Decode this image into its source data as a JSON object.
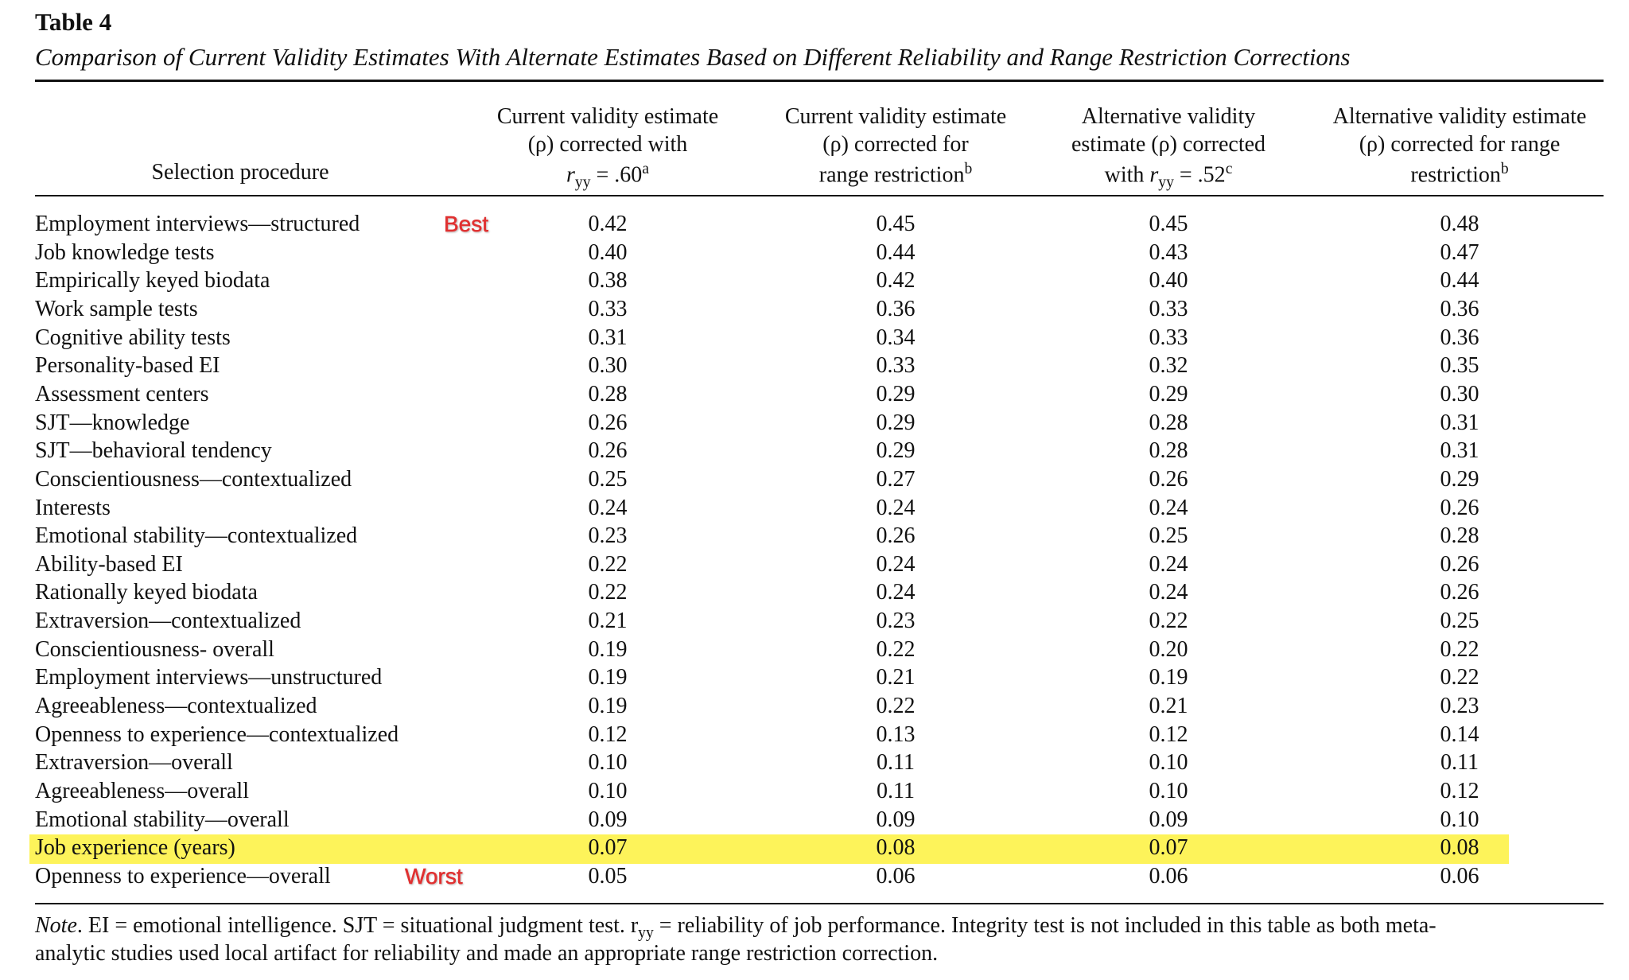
{
  "title": "Table 4",
  "subtitle": "Comparison of Current Validity Estimates With Alternate Estimates Based on Different Reliability and Range Restriction Corrections",
  "header": [
    [
      [
        {
          "text": "Selection procedure"
        }
      ]
    ],
    [
      [
        {
          "text": "Current validity estimate"
        }
      ],
      [
        {
          "text": "(ρ) corrected with"
        }
      ],
      [
        {
          "italic": "r"
        },
        {
          "sub": "yy"
        },
        {
          "text": " = .60"
        },
        {
          "sup": "a"
        }
      ]
    ],
    [
      [
        {
          "text": "Current validity estimate"
        }
      ],
      [
        {
          "text": "(ρ) corrected for"
        }
      ],
      [
        {
          "text": "range restriction"
        },
        {
          "sup": "b"
        }
      ]
    ],
    [
      [
        {
          "text": "Alternative validity"
        }
      ],
      [
        {
          "text": "estimate (ρ) corrected"
        }
      ],
      [
        {
          "text": "with "
        },
        {
          "italic": "r"
        },
        {
          "sub": "yy"
        },
        {
          "text": " = .52"
        },
        {
          "sup": "c"
        }
      ]
    ],
    [
      [
        {
          "text": "Alternative validity estimate"
        }
      ],
      [
        {
          "text": "(ρ) corrected for range"
        }
      ],
      [
        {
          "text": "restriction"
        },
        {
          "sup": "b"
        }
      ]
    ]
  ],
  "rows": [
    [
      "Employment interviews—structured",
      "0.42",
      "0.45",
      "0.45",
      "0.48"
    ],
    [
      "Job knowledge tests",
      "0.40",
      "0.44",
      "0.43",
      "0.47"
    ],
    [
      "Empirically keyed biodata",
      "0.38",
      "0.42",
      "0.40",
      "0.44"
    ],
    [
      "Work sample tests",
      "0.33",
      "0.36",
      "0.33",
      "0.36"
    ],
    [
      "Cognitive ability tests",
      "0.31",
      "0.34",
      "0.33",
      "0.36"
    ],
    [
      "Personality-based EI",
      "0.30",
      "0.33",
      "0.32",
      "0.35"
    ],
    [
      "Assessment centers",
      "0.28",
      "0.29",
      "0.29",
      "0.30"
    ],
    [
      "SJT—knowledge",
      "0.26",
      "0.29",
      "0.28",
      "0.31"
    ],
    [
      "SJT—behavioral tendency",
      "0.26",
      "0.29",
      "0.28",
      "0.31"
    ],
    [
      "Conscientiousness—contextualized",
      "0.25",
      "0.27",
      "0.26",
      "0.29"
    ],
    [
      "Interests",
      "0.24",
      "0.24",
      "0.24",
      "0.26"
    ],
    [
      "Emotional stability—contextualized",
      "0.23",
      "0.26",
      "0.25",
      "0.28"
    ],
    [
      "Ability-based EI",
      "0.22",
      "0.24",
      "0.24",
      "0.26"
    ],
    [
      "Rationally keyed biodata",
      "0.22",
      "0.24",
      "0.24",
      "0.26"
    ],
    [
      "Extraversion—contextualized",
      "0.21",
      "0.23",
      "0.22",
      "0.25"
    ],
    [
      "Conscientiousness- overall",
      "0.19",
      "0.22",
      "0.20",
      "0.22"
    ],
    [
      "Employment interviews—unstructured",
      "0.19",
      "0.21",
      "0.19",
      "0.22"
    ],
    [
      "Agreeableness—contextualized",
      "0.19",
      "0.22",
      "0.21",
      "0.23"
    ],
    [
      "Openness to experience—contextualized",
      "0.12",
      "0.13",
      "0.12",
      "0.14"
    ],
    [
      "Extraversion—overall",
      "0.10",
      "0.11",
      "0.10",
      "0.11"
    ],
    [
      "Agreeableness—overall",
      "0.10",
      "0.11",
      "0.10",
      "0.12"
    ],
    [
      "Emotional stability—overall",
      "0.09",
      "0.09",
      "0.09",
      "0.10"
    ],
    [
      "Job experience (years)",
      "0.07",
      "0.08",
      "0.07",
      "0.08"
    ],
    [
      "Openness to experience—overall",
      "0.05",
      "0.06",
      "0.06",
      "0.06"
    ]
  ],
  "highlight_row": 22,
  "annotations": [
    {
      "text": "Best",
      "row": 0
    },
    {
      "text": "Worst",
      "row": 23
    }
  ],
  "note": [
    [
      {
        "italic": "Note"
      },
      {
        "text": ".    EI = emotional intelligence. SJT = situational judgment test. r"
      },
      {
        "sub": "yy"
      },
      {
        "text": " = reliability of job performance. Integrity test is not included in this table as both meta-"
      }
    ],
    [
      {
        "text": "analytic studies used local artifact for reliability and made an appropriate range restriction correction."
      }
    ]
  ]
}
